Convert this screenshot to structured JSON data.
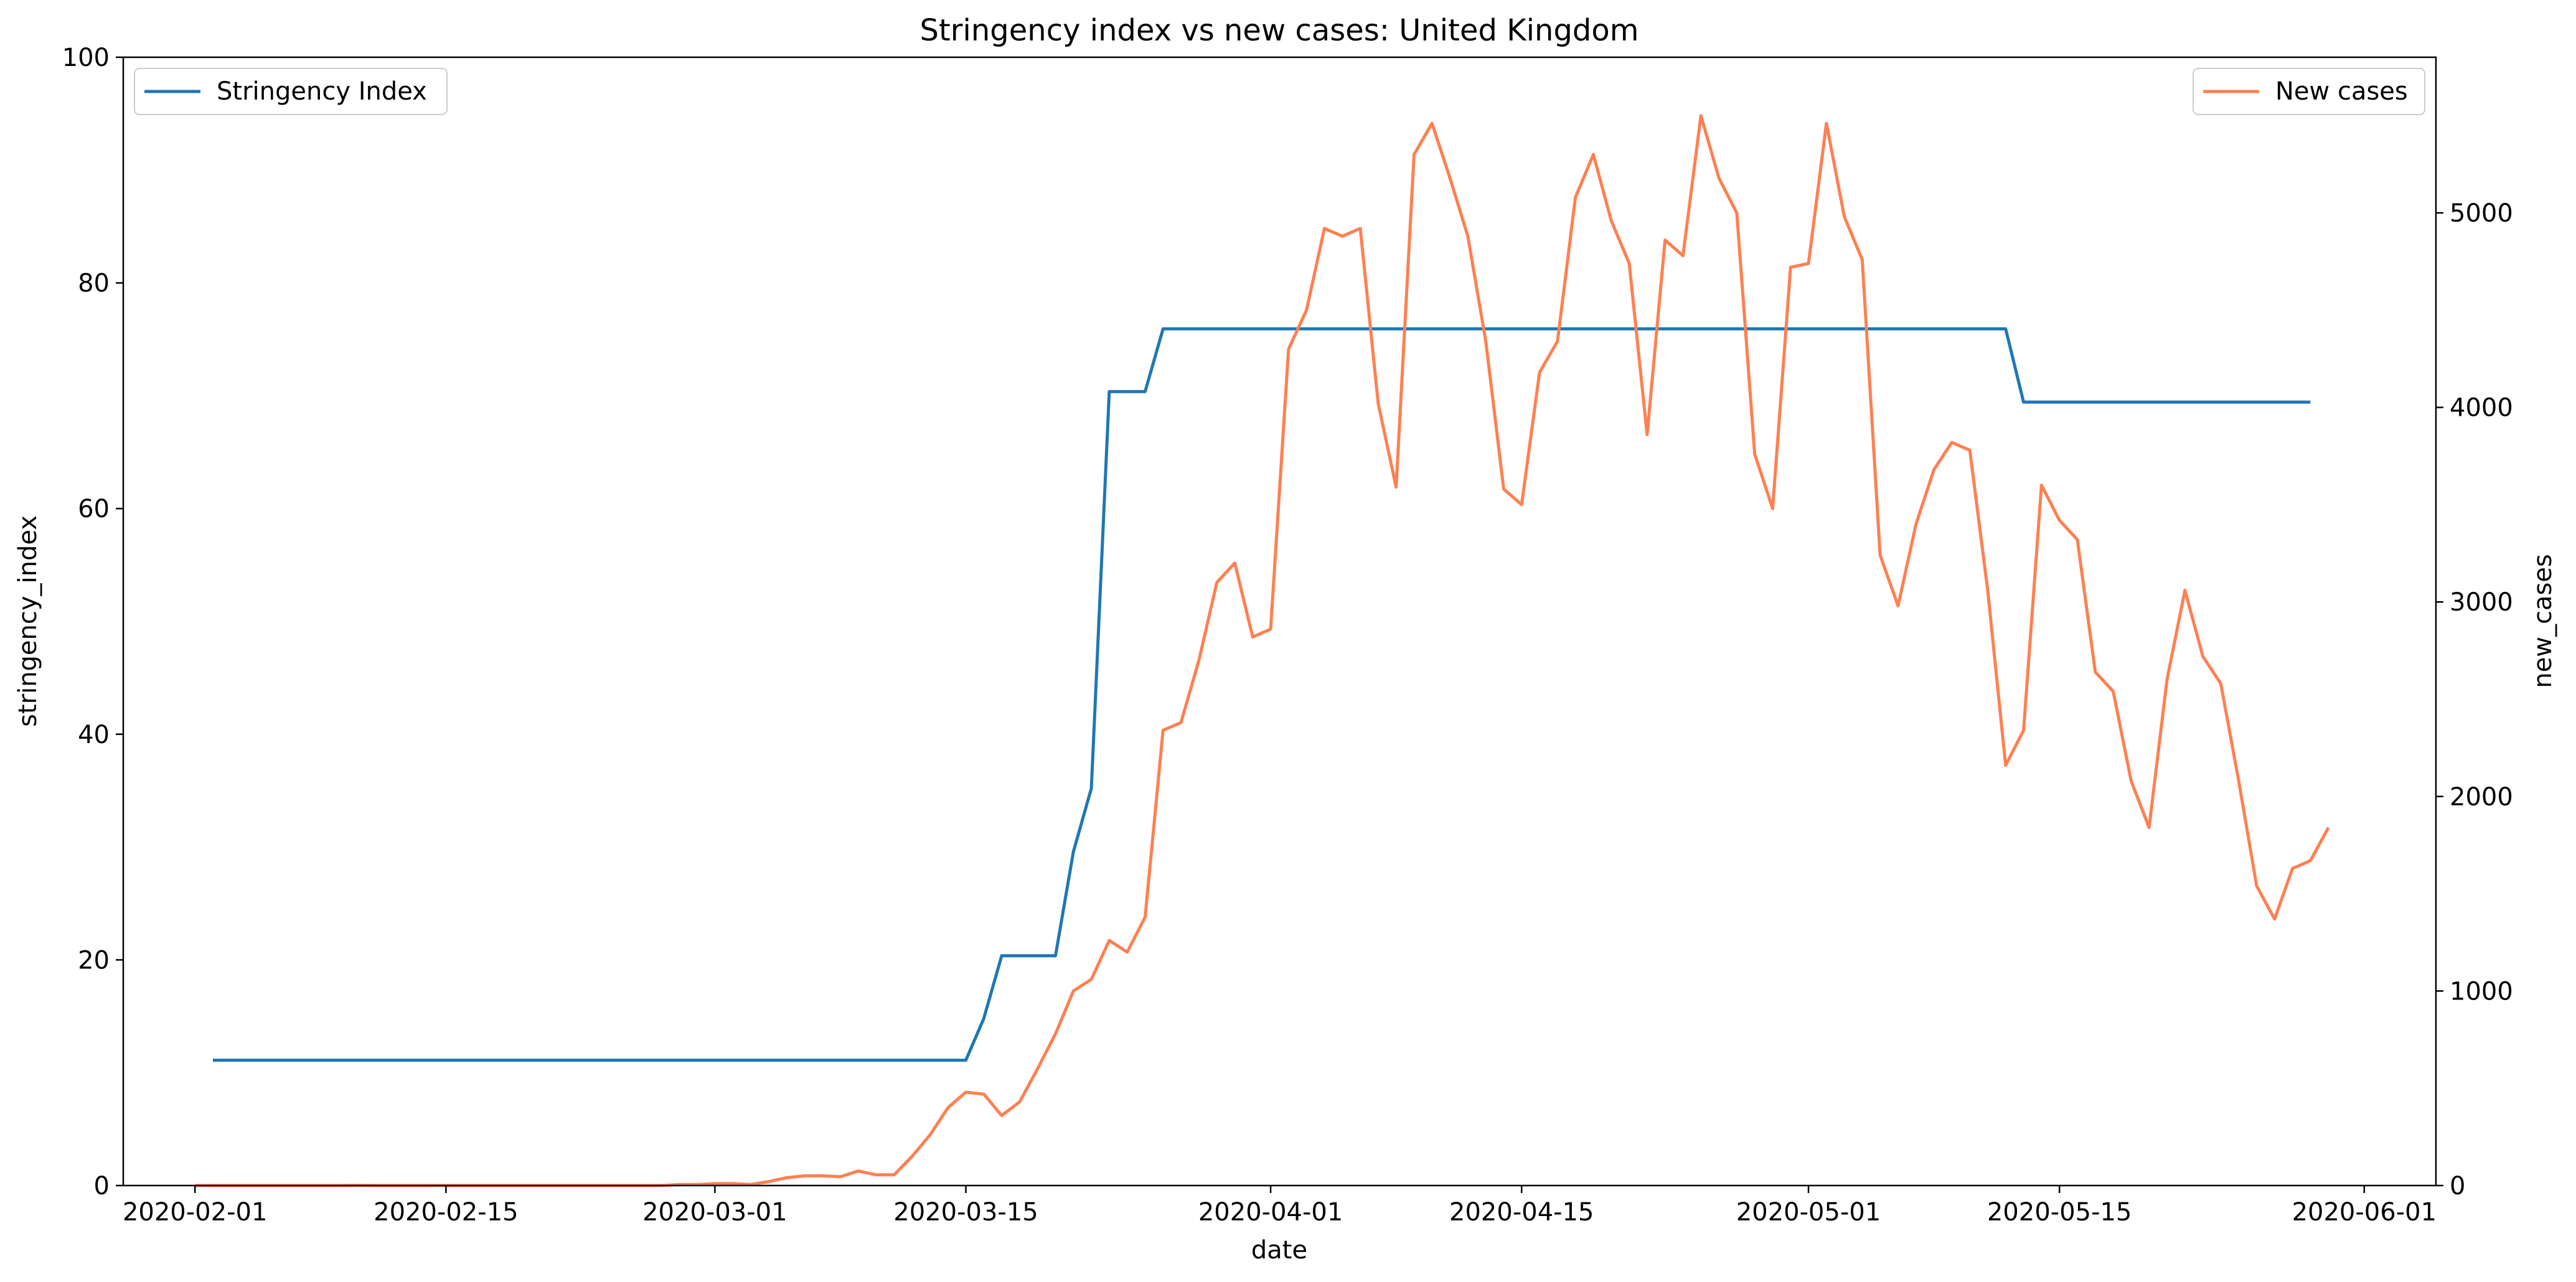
{
  "chart_data": {
    "type": "line",
    "title": "Stringency index vs new cases:  United Kingdom",
    "xlabel": "date",
    "ylabel_left": "stringency_index",
    "ylabel_right": "new_cases",
    "x_tick_labels": [
      "2020-02-01",
      "2020-02-15",
      "2020-03-01",
      "2020-03-15",
      "2020-04-01",
      "2020-04-15",
      "2020-05-01",
      "2020-05-15",
      "2020-06-01"
    ],
    "x_ticks": [
      "2020-02-01",
      "2020-02-15",
      "2020-03-01",
      "2020-03-15",
      "2020-04-01",
      "2020-04-15",
      "2020-05-01",
      "2020-05-15",
      "2020-06-01"
    ],
    "xlim": [
      "2020-01-28",
      "2020-06-05"
    ],
    "ylim_left": [
      0,
      100
    ],
    "yticks_left": [
      0,
      20,
      40,
      60,
      80,
      100
    ],
    "ylim_right": [
      0,
      5800
    ],
    "yticks_right": [
      0,
      1000,
      2000,
      3000,
      4000,
      5000
    ],
    "grid": false,
    "series": [
      {
        "name": "Stringency Index",
        "axis": "left",
        "color": "#1f77b4",
        "legend_position": "upper left",
        "points": [
          [
            "2020-02-02",
            11.11
          ],
          [
            "2020-03-15",
            11.11
          ],
          [
            "2020-03-16",
            14.8
          ],
          [
            "2020-03-17",
            20.37
          ],
          [
            "2020-03-20",
            20.37
          ],
          [
            "2020-03-21",
            29.6
          ],
          [
            "2020-03-22",
            35.2
          ],
          [
            "2020-03-23",
            70.37
          ],
          [
            "2020-03-25",
            70.37
          ],
          [
            "2020-03-26",
            75.93
          ],
          [
            "2020-05-12",
            75.93
          ],
          [
            "2020-05-13",
            69.44
          ],
          [
            "2020-05-29",
            69.44
          ]
        ]
      },
      {
        "name": "New cases",
        "axis": "right",
        "color": "#ff7f50",
        "legend_position": "upper right",
        "points": [
          [
            "2020-02-01",
            0
          ],
          [
            "2020-02-02",
            0
          ],
          [
            "2020-02-03",
            0
          ],
          [
            "2020-02-04",
            0
          ],
          [
            "2020-02-05",
            0
          ],
          [
            "2020-02-06",
            0
          ],
          [
            "2020-02-07",
            0
          ],
          [
            "2020-02-08",
            0
          ],
          [
            "2020-02-09",
            0
          ],
          [
            "2020-02-10",
            1
          ],
          [
            "2020-02-11",
            0
          ],
          [
            "2020-02-12",
            0
          ],
          [
            "2020-02-13",
            0
          ],
          [
            "2020-02-14",
            0
          ],
          [
            "2020-02-15",
            0
          ],
          [
            "2020-02-16",
            0
          ],
          [
            "2020-02-17",
            0
          ],
          [
            "2020-02-18",
            0
          ],
          [
            "2020-02-19",
            0
          ],
          [
            "2020-02-20",
            0
          ],
          [
            "2020-02-21",
            0
          ],
          [
            "2020-02-22",
            0
          ],
          [
            "2020-02-23",
            0
          ],
          [
            "2020-02-24",
            0
          ],
          [
            "2020-02-25",
            0
          ],
          [
            "2020-02-26",
            0
          ],
          [
            "2020-02-27",
            0
          ],
          [
            "2020-02-28",
            5
          ],
          [
            "2020-02-29",
            5
          ],
          [
            "2020-03-01",
            10
          ],
          [
            "2020-03-02",
            10
          ],
          [
            "2020-03-03",
            5
          ],
          [
            "2020-03-04",
            20
          ],
          [
            "2020-03-05",
            40
          ],
          [
            "2020-03-06",
            50
          ],
          [
            "2020-03-07",
            50
          ],
          [
            "2020-03-08",
            45
          ],
          [
            "2020-03-09",
            75
          ],
          [
            "2020-03-10",
            55
          ],
          [
            "2020-03-11",
            55
          ],
          [
            "2020-03-12",
            150
          ],
          [
            "2020-03-13",
            260
          ],
          [
            "2020-03-14",
            400
          ],
          [
            "2020-03-15",
            480
          ],
          [
            "2020-03-16",
            470
          ],
          [
            "2020-03-17",
            360
          ],
          [
            "2020-03-18",
            430
          ],
          [
            "2020-03-19",
            600
          ],
          [
            "2020-03-20",
            780
          ],
          [
            "2020-03-21",
            1000
          ],
          [
            "2020-03-22",
            1060
          ],
          [
            "2020-03-23",
            1260
          ],
          [
            "2020-03-24",
            1200
          ],
          [
            "2020-03-25",
            1380
          ],
          [
            "2020-03-26",
            2340
          ],
          [
            "2020-03-27",
            2380
          ],
          [
            "2020-03-28",
            2700
          ],
          [
            "2020-03-29",
            3100
          ],
          [
            "2020-03-30",
            3200
          ],
          [
            "2020-03-31",
            2820
          ],
          [
            "2020-04-01",
            2860
          ],
          [
            "2020-04-02",
            4300
          ],
          [
            "2020-04-03",
            4500
          ],
          [
            "2020-04-04",
            4920
          ],
          [
            "2020-04-05",
            4880
          ],
          [
            "2020-04-06",
            4920
          ],
          [
            "2020-04-07",
            4020
          ],
          [
            "2020-04-08",
            3590
          ],
          [
            "2020-04-09",
            5300
          ],
          [
            "2020-04-10",
            5460
          ],
          [
            "2020-04-11",
            5180
          ],
          [
            "2020-04-12",
            4880
          ],
          [
            "2020-04-13",
            4340
          ],
          [
            "2020-04-14",
            3580
          ],
          [
            "2020-04-15",
            3500
          ],
          [
            "2020-04-16",
            4180
          ],
          [
            "2020-04-17",
            4340
          ],
          [
            "2020-04-18",
            5080
          ],
          [
            "2020-04-19",
            5300
          ],
          [
            "2020-04-20",
            4960
          ],
          [
            "2020-04-21",
            4740
          ],
          [
            "2020-04-22",
            3860
          ],
          [
            "2020-04-23",
            4860
          ],
          [
            "2020-04-24",
            4780
          ],
          [
            "2020-04-25",
            5500
          ],
          [
            "2020-04-26",
            5180
          ],
          [
            "2020-04-27",
            5000
          ],
          [
            "2020-04-28",
            3760
          ],
          [
            "2020-04-29",
            3480
          ],
          [
            "2020-04-30",
            4720
          ],
          [
            "2020-05-01",
            4740
          ],
          [
            "2020-05-02",
            5460
          ],
          [
            "2020-05-03",
            4980
          ],
          [
            "2020-05-04",
            4760
          ],
          [
            "2020-05-05",
            3240
          ],
          [
            "2020-05-06",
            2980
          ],
          [
            "2020-05-07",
            3400
          ],
          [
            "2020-05-08",
            3680
          ],
          [
            "2020-05-09",
            3820
          ],
          [
            "2020-05-10",
            3780
          ],
          [
            "2020-05-11",
            3060
          ],
          [
            "2020-05-12",
            2160
          ],
          [
            "2020-05-13",
            2340
          ],
          [
            "2020-05-14",
            3600
          ],
          [
            "2020-05-15",
            3420
          ],
          [
            "2020-05-16",
            3320
          ],
          [
            "2020-05-17",
            2640
          ],
          [
            "2020-05-18",
            2540
          ],
          [
            "2020-05-19",
            2080
          ],
          [
            "2020-05-20",
            1840
          ],
          [
            "2020-05-21",
            2600
          ],
          [
            "2020-05-22",
            3060
          ],
          [
            "2020-05-23",
            2720
          ],
          [
            "2020-05-24",
            2580
          ],
          [
            "2020-05-25",
            2080
          ],
          [
            "2020-05-26",
            1540
          ],
          [
            "2020-05-27",
            1370
          ],
          [
            "2020-05-28",
            1630
          ],
          [
            "2020-05-29",
            1670
          ],
          [
            "2020-05-30",
            1840
          ]
        ]
      }
    ]
  }
}
